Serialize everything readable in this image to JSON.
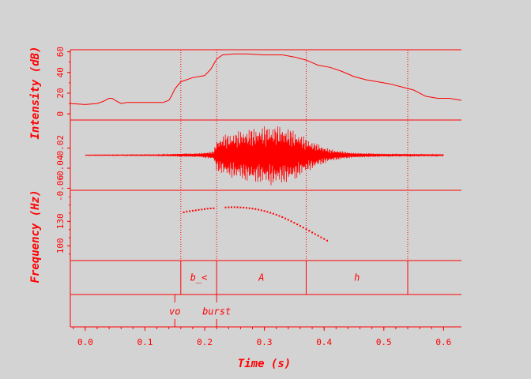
{
  "colors": {
    "fg": "#ff0000",
    "background": "#d3d3d3"
  },
  "chart_data": {
    "type": "line",
    "xlabel": "Time (s)",
    "xlim": [
      -0.025,
      0.63
    ],
    "x_ticks": [
      "0.0",
      "0.1",
      "0.2",
      "0.3",
      "0.4",
      "0.5",
      "0.6"
    ],
    "x_tick_values": [
      0.0,
      0.1,
      0.2,
      0.3,
      0.4,
      0.5,
      0.6
    ],
    "boundaries": [
      0.16,
      0.22,
      0.37,
      0.54
    ],
    "intensity": {
      "ylabel": "Intensity (dB)",
      "ylim": [
        -6,
        62
      ],
      "ticks": [
        "0",
        "20",
        "40",
        "60"
      ],
      "tick_values": [
        0,
        20,
        40,
        60
      ],
      "x": [
        -0.025,
        0.0,
        0.02,
        0.03,
        0.04,
        0.045,
        0.05,
        0.06,
        0.07,
        0.09,
        0.12,
        0.13,
        0.14,
        0.145,
        0.15,
        0.16,
        0.18,
        0.2,
        0.21,
        0.22,
        0.23,
        0.25,
        0.27,
        0.3,
        0.33,
        0.35,
        0.37,
        0.39,
        0.41,
        0.43,
        0.45,
        0.47,
        0.49,
        0.51,
        0.53,
        0.55,
        0.57,
        0.59,
        0.61,
        0.63
      ],
      "y": [
        10,
        9,
        10,
        12,
        15,
        15,
        13,
        10,
        11,
        11,
        11,
        11,
        13,
        18,
        24,
        31,
        35,
        37,
        43,
        53,
        57,
        58,
        58,
        57,
        57,
        55,
        52,
        47,
        45,
        41,
        36,
        33,
        31,
        29,
        26,
        23,
        17,
        15,
        15,
        13
      ]
    },
    "waveform": {
      "ylim": [
        -0.062,
        0.008
      ],
      "ticks": [
        "-0.02",
        "-0.04",
        "-0.06"
      ],
      "tick_values": [
        -0.02,
        -0.04,
        -0.06
      ],
      "baseline": -0.027,
      "x_start": 0.0,
      "x_end": 0.6,
      "envelope_x": [
        0.0,
        0.12,
        0.155,
        0.19,
        0.215,
        0.22,
        0.235,
        0.25,
        0.27,
        0.29,
        0.31,
        0.33,
        0.35,
        0.37,
        0.39,
        0.41,
        0.43,
        0.45,
        0.5,
        0.55,
        0.6
      ],
      "envelope_amp": [
        0.0003,
        0.0005,
        0.0015,
        0.002,
        0.004,
        0.016,
        0.021,
        0.023,
        0.026,
        0.028,
        0.03,
        0.029,
        0.025,
        0.017,
        0.011,
        0.006,
        0.004,
        0.0025,
        0.0015,
        0.0012,
        0.0008
      ]
    },
    "frequency": {
      "ylabel": "Frequency (Hz)",
      "ylim": [
        82,
        168
      ],
      "ticks": [
        "100",
        "130"
      ],
      "tick_values": [
        100,
        130
      ],
      "label_ticks": [],
      "x": [
        0.165,
        0.17,
        0.175,
        0.18,
        0.185,
        0.19,
        0.195,
        0.2,
        0.205,
        0.21,
        0.215,
        0.235,
        0.24,
        0.245,
        0.25,
        0.255,
        0.26,
        0.265,
        0.27,
        0.275,
        0.28,
        0.285,
        0.29,
        0.295,
        0.3,
        0.305,
        0.31,
        0.315,
        0.32,
        0.325,
        0.33,
        0.335,
        0.34,
        0.345,
        0.35,
        0.355,
        0.36,
        0.365,
        0.37,
        0.375,
        0.38,
        0.385,
        0.39,
        0.395,
        0.4,
        0.405
      ],
      "y": [
        141,
        142,
        142.5,
        143,
        143.5,
        144,
        144.5,
        145,
        145.5,
        145.8,
        146,
        147,
        147.2,
        147.3,
        147.3,
        147.2,
        147,
        146.8,
        146.5,
        146.1,
        145.6,
        145,
        144.3,
        143.5,
        142.6,
        141.6,
        140.5,
        139.3,
        138,
        136.6,
        135.1,
        133.5,
        131.8,
        130,
        128.2,
        126.3,
        124.4,
        122.4,
        120.4,
        118.4,
        116.4,
        114.4,
        112.4,
        110.4,
        108.4,
        106.4
      ]
    },
    "tiers": [
      {
        "type": "interval",
        "labels": [
          {
            "text": "",
            "start": -0.025,
            "end": 0.16
          },
          {
            "text": "b_<",
            "start": 0.16,
            "end": 0.22
          },
          {
            "text": "A",
            "start": 0.22,
            "end": 0.37
          },
          {
            "text": "h",
            "start": 0.37,
            "end": 0.54
          },
          {
            "text": "",
            "start": 0.54,
            "end": 0.63
          }
        ]
      },
      {
        "type": "point",
        "points": [
          {
            "text": "vo",
            "time": 0.15
          },
          {
            "text": "burst",
            "time": 0.22
          }
        ]
      }
    ]
  }
}
